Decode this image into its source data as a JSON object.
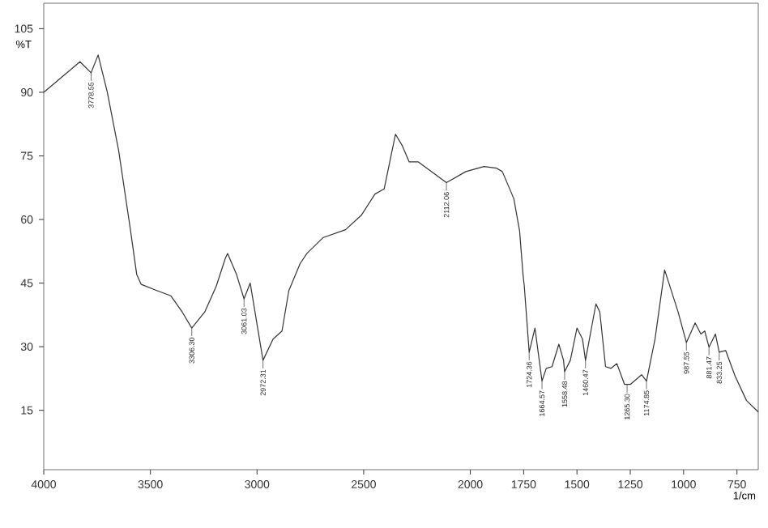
{
  "chart_data": {
    "type": "line",
    "xlabel": "1/cm",
    "ylabel": "%T",
    "xlim": [
      4000,
      650
    ],
    "ylim": [
      1,
      111
    ],
    "xticks": [
      4000,
      3500,
      3000,
      2500,
      2000,
      1750,
      1500,
      1250,
      1000,
      750
    ],
    "yticks": [
      15,
      30,
      45,
      60,
      75,
      90,
      105
    ],
    "grid": false,
    "marker": "none",
    "line_style": "solid",
    "series": [
      {
        "color": "#333333",
        "x": [
          4000,
          3830,
          3778,
          3745,
          3702,
          3649,
          3596,
          3564,
          3543,
          3468,
          3404,
          3351,
          3306,
          3245,
          3191,
          3149,
          3138,
          3096,
          3061,
          3032,
          2972,
          2925,
          2883,
          2851,
          2798,
          2766,
          2691,
          2585,
          2511,
          2447,
          2404,
          2351,
          2319,
          2287,
          2245,
          2112,
          2021,
          1936,
          1877,
          1850,
          1796,
          1769,
          1753,
          1747,
          1724,
          1697,
          1664,
          1644,
          1617,
          1585,
          1563,
          1558,
          1531,
          1500,
          1474,
          1460,
          1411,
          1393,
          1366,
          1340,
          1313,
          1277,
          1265,
          1250,
          1197,
          1174,
          1134,
          1089,
          1062,
          1026,
          987,
          946,
          919,
          901,
          881,
          851,
          833,
          803,
          758,
          705,
          650
        ],
        "values": [
          90,
          97.2,
          94.6,
          98.8,
          90,
          76.3,
          58.4,
          47,
          44.7,
          43.2,
          42,
          38.2,
          34.4,
          38.2,
          44.3,
          50.8,
          52,
          47,
          41.3,
          45,
          26.8,
          31.8,
          33.7,
          43.2,
          49.6,
          52,
          55.7,
          57.6,
          61,
          66,
          67.2,
          80.1,
          77.4,
          73.6,
          73.6,
          68.7,
          71.3,
          72.5,
          72.1,
          71.3,
          64.9,
          57.3,
          47,
          44.3,
          28.7,
          34.4,
          21.9,
          24.9,
          25.3,
          30.6,
          26.8,
          24.1,
          26.8,
          34.4,
          31.8,
          26.8,
          40.1,
          38.2,
          25.3,
          24.9,
          26,
          21.1,
          21.1,
          21.1,
          23.4,
          21.9,
          31.8,
          48.1,
          43.9,
          38.2,
          31,
          35.6,
          33,
          33.7,
          29.9,
          33,
          28.7,
          29.1,
          23,
          17.3,
          14.6
        ]
      }
    ],
    "annotations": [
      {
        "text": "3778.55",
        "x": 3778,
        "y": 94.6
      },
      {
        "text": "3306.30",
        "x": 3306,
        "y": 34.4
      },
      {
        "text": "3061.03",
        "x": 3061,
        "y": 41.3
      },
      {
        "text": "2972.31",
        "x": 2972,
        "y": 26.8
      },
      {
        "text": "2112.06",
        "x": 2112,
        "y": 68.7
      },
      {
        "text": "1724.36",
        "x": 1724,
        "y": 28.7
      },
      {
        "text": "1664.57",
        "x": 1664,
        "y": 21.9
      },
      {
        "text": "1558.48",
        "x": 1558,
        "y": 24.1
      },
      {
        "text": "1460.47",
        "x": 1460,
        "y": 26.8
      },
      {
        "text": "1265.30",
        "x": 1265,
        "y": 21.1
      },
      {
        "text": "1174.85",
        "x": 1174,
        "y": 21.9
      },
      {
        "text": "987.55",
        "x": 987,
        "y": 31
      },
      {
        "text": "881.47",
        "x": 881,
        "y": 29.9
      },
      {
        "text": "833.25",
        "x": 833,
        "y": 28.7
      }
    ]
  }
}
